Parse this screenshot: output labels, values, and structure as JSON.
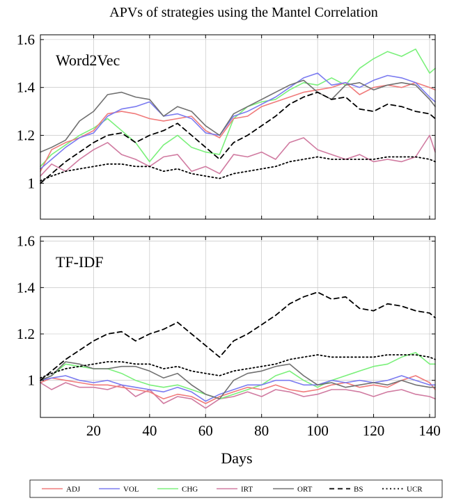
{
  "chart_data": {
    "type": "line",
    "title": "APVs of strategies using the Mantel Correlation",
    "xlabel": "Days",
    "xlim": [
      1,
      142
    ],
    "xticks": [
      20,
      40,
      60,
      80,
      100,
      120,
      140
    ],
    "colors": {
      "ADJ": "#f07a7a",
      "VOL": "#7a7af0",
      "CHG": "#7af07a",
      "IRT": "#d07aa0",
      "ORT": "#707070",
      "BS": "#000000",
      "UCR": "#000000"
    },
    "legend": [
      {
        "name": "ADJ",
        "style": "solid"
      },
      {
        "name": "VOL",
        "style": "solid"
      },
      {
        "name": "CHG",
        "style": "solid"
      },
      {
        "name": "IRT",
        "style": "solid"
      },
      {
        "name": "ORT",
        "style": "solid"
      },
      {
        "name": "BS",
        "style": "dashed"
      },
      {
        "name": "UCR",
        "style": "dotted"
      }
    ],
    "legend_position": "bottom",
    "panels": [
      {
        "label": "Word2Vec",
        "ylim": [
          0.85,
          1.62
        ],
        "yticks": [
          1,
          1.2,
          1.4,
          1.6
        ],
        "yticklabels": [
          "1",
          "1.2",
          "1.4",
          "1.6"
        ],
        "series": [
          {
            "name": "ADJ",
            "x": [
              1,
              5,
              10,
              15,
              20,
              25,
              30,
              35,
              40,
              45,
              50,
              55,
              60,
              65,
              70,
              75,
              80,
              85,
              90,
              95,
              100,
              105,
              110,
              115,
              120,
              125,
              130,
              135,
              140,
              142
            ],
            "y": [
              1.05,
              1.14,
              1.17,
              1.19,
              1.22,
              1.29,
              1.3,
              1.29,
              1.27,
              1.26,
              1.27,
              1.28,
              1.22,
              1.19,
              1.27,
              1.28,
              1.32,
              1.34,
              1.36,
              1.38,
              1.39,
              1.4,
              1.42,
              1.37,
              1.4,
              1.41,
              1.4,
              1.42,
              1.4,
              1.39
            ]
          },
          {
            "name": "VOL",
            "x": [
              1,
              5,
              10,
              15,
              20,
              25,
              30,
              35,
              40,
              45,
              50,
              55,
              60,
              65,
              70,
              75,
              80,
              85,
              90,
              95,
              100,
              105,
              110,
              115,
              120,
              125,
              130,
              135,
              140,
              142
            ],
            "y": [
              1.06,
              1.1,
              1.15,
              1.19,
              1.21,
              1.28,
              1.31,
              1.32,
              1.34,
              1.28,
              1.29,
              1.27,
              1.21,
              1.2,
              1.28,
              1.3,
              1.33,
              1.36,
              1.4,
              1.44,
              1.46,
              1.41,
              1.42,
              1.4,
              1.43,
              1.45,
              1.44,
              1.42,
              1.36,
              1.34
            ]
          },
          {
            "name": "CHG",
            "x": [
              1,
              5,
              10,
              15,
              20,
              25,
              30,
              35,
              40,
              45,
              50,
              55,
              60,
              65,
              70,
              75,
              80,
              85,
              90,
              95,
              100,
              105,
              110,
              115,
              120,
              125,
              130,
              135,
              140,
              142
            ],
            "y": [
              1.07,
              1.12,
              1.16,
              1.2,
              1.23,
              1.27,
              1.22,
              1.17,
              1.09,
              1.16,
              1.2,
              1.15,
              1.13,
              1.12,
              1.27,
              1.32,
              1.34,
              1.35,
              1.39,
              1.42,
              1.41,
              1.44,
              1.41,
              1.48,
              1.52,
              1.55,
              1.53,
              1.56,
              1.46,
              1.48
            ]
          },
          {
            "name": "IRT",
            "x": [
              1,
              5,
              10,
              15,
              20,
              25,
              30,
              35,
              40,
              45,
              50,
              55,
              60,
              65,
              70,
              75,
              80,
              85,
              90,
              95,
              100,
              105,
              110,
              115,
              120,
              125,
              130,
              135,
              140,
              142
            ],
            "y": [
              1.03,
              1.08,
              1.05,
              1.1,
              1.14,
              1.17,
              1.12,
              1.1,
              1.07,
              1.11,
              1.12,
              1.05,
              1.07,
              1.04,
              1.12,
              1.11,
              1.13,
              1.1,
              1.17,
              1.19,
              1.14,
              1.12,
              1.1,
              1.12,
              1.09,
              1.1,
              1.09,
              1.11,
              1.2,
              1.13
            ]
          },
          {
            "name": "ORT",
            "x": [
              1,
              5,
              10,
              15,
              20,
              25,
              30,
              35,
              40,
              45,
              50,
              55,
              60,
              65,
              70,
              75,
              80,
              85,
              90,
              95,
              100,
              105,
              110,
              115,
              120,
              125,
              130,
              135,
              140,
              142
            ],
            "y": [
              1.13,
              1.15,
              1.18,
              1.26,
              1.3,
              1.37,
              1.38,
              1.36,
              1.35,
              1.28,
              1.32,
              1.3,
              1.24,
              1.2,
              1.29,
              1.32,
              1.35,
              1.38,
              1.41,
              1.43,
              1.38,
              1.35,
              1.41,
              1.42,
              1.39,
              1.41,
              1.42,
              1.41,
              1.35,
              1.32
            ]
          },
          {
            "name": "BS",
            "x": [
              1,
              5,
              10,
              15,
              20,
              25,
              30,
              35,
              40,
              45,
              50,
              55,
              60,
              65,
              70,
              75,
              80,
              85,
              90,
              95,
              100,
              105,
              110,
              115,
              120,
              125,
              130,
              135,
              140,
              142
            ],
            "y": [
              1.0,
              1.04,
              1.09,
              1.13,
              1.17,
              1.2,
              1.21,
              1.17,
              1.2,
              1.22,
              1.25,
              1.2,
              1.15,
              1.1,
              1.17,
              1.2,
              1.24,
              1.28,
              1.33,
              1.36,
              1.38,
              1.35,
              1.36,
              1.31,
              1.3,
              1.33,
              1.32,
              1.3,
              1.29,
              1.27
            ]
          },
          {
            "name": "UCR",
            "x": [
              1,
              5,
              10,
              15,
              20,
              25,
              30,
              35,
              40,
              45,
              50,
              55,
              60,
              65,
              70,
              75,
              80,
              85,
              90,
              95,
              100,
              105,
              110,
              115,
              120,
              125,
              130,
              135,
              140,
              142
            ],
            "y": [
              1.01,
              1.03,
              1.05,
              1.06,
              1.07,
              1.08,
              1.08,
              1.07,
              1.07,
              1.05,
              1.06,
              1.04,
              1.03,
              1.02,
              1.04,
              1.05,
              1.06,
              1.07,
              1.09,
              1.1,
              1.11,
              1.1,
              1.1,
              1.1,
              1.1,
              1.11,
              1.11,
              1.11,
              1.1,
              1.09
            ]
          }
        ]
      },
      {
        "label": "TF-IDF",
        "ylim": [
          0.84,
          1.62
        ],
        "yticks": [
          1,
          1.2,
          1.4,
          1.6
        ],
        "yticklabels": [
          "1",
          "1.2",
          "1.4",
          "1.6"
        ],
        "series": [
          {
            "name": "ADJ",
            "x": [
              1,
              5,
              10,
              15,
              20,
              25,
              30,
              35,
              40,
              45,
              50,
              55,
              60,
              65,
              70,
              75,
              80,
              85,
              90,
              95,
              100,
              105,
              110,
              115,
              120,
              125,
              130,
              135,
              140,
              142
            ],
            "y": [
              0.99,
              1.01,
              1.0,
              0.99,
              0.98,
              0.98,
              0.97,
              0.96,
              0.95,
              0.92,
              0.94,
              0.93,
              0.9,
              0.93,
              0.95,
              0.97,
              0.96,
              0.98,
              0.96,
              0.95,
              0.96,
              0.98,
              0.99,
              0.97,
              0.98,
              0.97,
              1.0,
              1.02,
              0.99,
              0.96
            ]
          },
          {
            "name": "VOL",
            "x": [
              1,
              5,
              10,
              15,
              20,
              25,
              30,
              35,
              40,
              45,
              50,
              55,
              60,
              65,
              70,
              75,
              80,
              85,
              90,
              95,
              100,
              105,
              110,
              115,
              120,
              125,
              130,
              135,
              140,
              142
            ],
            "y": [
              1.0,
              1.01,
              1.02,
              1.0,
              0.99,
              1.0,
              0.98,
              0.97,
              0.96,
              0.95,
              0.97,
              0.95,
              0.91,
              0.94,
              0.96,
              0.98,
              0.98,
              1.0,
              1.0,
              0.98,
              0.98,
              1.0,
              0.99,
              1.0,
              0.99,
              1.0,
              1.02,
              1.0,
              0.98,
              0.98
            ]
          },
          {
            "name": "CHG",
            "x": [
              1,
              5,
              10,
              15,
              20,
              25,
              30,
              35,
              40,
              45,
              50,
              55,
              60,
              65,
              70,
              75,
              80,
              85,
              90,
              95,
              100,
              105,
              110,
              115,
              120,
              125,
              130,
              135,
              140,
              142
            ],
            "y": [
              1.0,
              1.02,
              1.07,
              1.06,
              1.05,
              1.05,
              1.03,
              1.0,
              0.98,
              0.97,
              0.98,
              0.96,
              0.94,
              0.92,
              0.94,
              0.96,
              0.98,
              1.02,
              1.04,
              1.0,
              0.97,
              1.0,
              1.02,
              1.04,
              1.06,
              1.07,
              1.1,
              1.12,
              1.07,
              1.07
            ]
          },
          {
            "name": "IRT",
            "x": [
              1,
              5,
              10,
              15,
              20,
              25,
              30,
              35,
              40,
              45,
              50,
              55,
              60,
              65,
              70,
              75,
              80,
              85,
              90,
              95,
              100,
              105,
              110,
              115,
              120,
              125,
              130,
              135,
              140,
              142
            ],
            "y": [
              0.99,
              0.96,
              0.99,
              0.97,
              0.97,
              0.96,
              0.98,
              0.93,
              0.96,
              0.9,
              0.93,
              0.92,
              0.88,
              0.92,
              0.93,
              0.95,
              0.93,
              0.96,
              0.95,
              0.93,
              0.94,
              0.96,
              0.96,
              0.95,
              0.93,
              0.95,
              0.96,
              0.94,
              0.93,
              0.92
            ]
          },
          {
            "name": "ORT",
            "x": [
              1,
              5,
              10,
              15,
              20,
              25,
              30,
              35,
              40,
              45,
              50,
              55,
              60,
              65,
              70,
              75,
              80,
              85,
              90,
              95,
              100,
              105,
              110,
              115,
              120,
              125,
              130,
              135,
              140,
              142
            ],
            "y": [
              1.0,
              1.02,
              1.08,
              1.07,
              1.05,
              1.05,
              1.06,
              1.06,
              1.04,
              1.01,
              1.03,
              0.98,
              0.94,
              0.92,
              1.0,
              1.03,
              1.04,
              1.06,
              1.07,
              1.02,
              0.98,
              0.99,
              0.97,
              0.98,
              0.99,
              0.98,
              1.0,
              0.98,
              0.97,
              0.97
            ]
          },
          {
            "name": "BS",
            "x": [
              1,
              5,
              10,
              15,
              20,
              25,
              30,
              35,
              40,
              45,
              50,
              55,
              60,
              65,
              70,
              75,
              80,
              85,
              90,
              95,
              100,
              105,
              110,
              115,
              120,
              125,
              130,
              135,
              140,
              142
            ],
            "y": [
              1.0,
              1.04,
              1.09,
              1.13,
              1.17,
              1.2,
              1.21,
              1.17,
              1.2,
              1.22,
              1.25,
              1.2,
              1.15,
              1.1,
              1.17,
              1.2,
              1.24,
              1.28,
              1.33,
              1.36,
              1.38,
              1.35,
              1.36,
              1.31,
              1.3,
              1.33,
              1.32,
              1.3,
              1.29,
              1.27
            ]
          },
          {
            "name": "UCR",
            "x": [
              1,
              5,
              10,
              15,
              20,
              25,
              30,
              35,
              40,
              45,
              50,
              55,
              60,
              65,
              70,
              75,
              80,
              85,
              90,
              95,
              100,
              105,
              110,
              115,
              120,
              125,
              130,
              135,
              140,
              142
            ],
            "y": [
              1.01,
              1.03,
              1.05,
              1.06,
              1.07,
              1.08,
              1.08,
              1.07,
              1.07,
              1.05,
              1.06,
              1.04,
              1.03,
              1.02,
              1.04,
              1.05,
              1.06,
              1.07,
              1.09,
              1.1,
              1.11,
              1.1,
              1.1,
              1.1,
              1.1,
              1.11,
              1.11,
              1.11,
              1.1,
              1.09
            ]
          }
        ]
      }
    ]
  }
}
